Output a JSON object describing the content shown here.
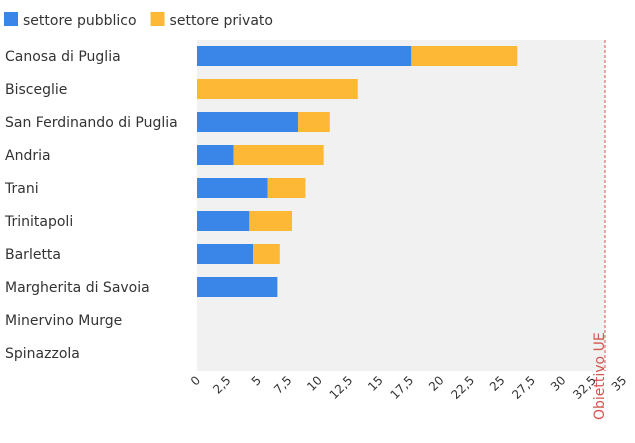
{
  "chart_data": {
    "type": "bar",
    "orientation": "horizontal",
    "stacked": true,
    "categories": [
      "Canosa di Puglia",
      "Bisceglie",
      "San Ferdinando di Puglia",
      "Andria",
      "Trani",
      "Trinitapoli",
      "Barletta",
      "Margherita di Savoia",
      "Minervino Murge",
      "Spinazzola"
    ],
    "series": [
      {
        "name": "settore pubblico",
        "color": "#3a86e8",
        "values": [
          17.6,
          0,
          8.3,
          3.0,
          5.8,
          4.3,
          4.6,
          6.6,
          0,
          0
        ]
      },
      {
        "name": "settore privato",
        "color": "#fdb935",
        "values": [
          8.7,
          13.2,
          2.6,
          7.4,
          3.1,
          3.5,
          2.2,
          0,
          0,
          0
        ]
      }
    ],
    "xlim": [
      0,
      33.5
    ],
    "xticks": [
      "0",
      "2,5",
      "5",
      "7,5",
      "10",
      "12,5",
      "15",
      "17,5",
      "20",
      "22,5",
      "25",
      "27,5",
      "30",
      "32,5",
      "35"
    ],
    "xtick_values": [
      0,
      2.5,
      5,
      7.5,
      10,
      12.5,
      15,
      17.5,
      20,
      22.5,
      25,
      27.5,
      30,
      32.5,
      35
    ],
    "reference_line": {
      "value": 33.5,
      "label": "Obiettivo UE",
      "color": "#d9534f"
    },
    "legend_position": "top-left",
    "plot_background": "#f1f1f1"
  }
}
